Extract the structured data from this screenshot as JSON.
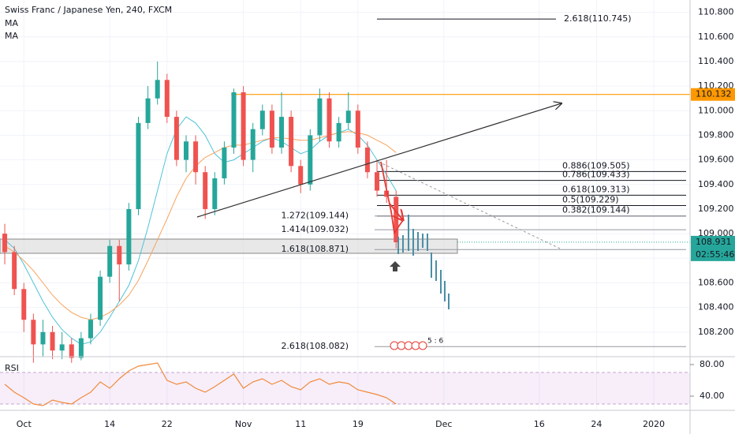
{
  "chart_data": {
    "type": "candlestick",
    "title": "Swiss Franc / Japanese Yen, 240, FXCM",
    "up_color": "#26a69a",
    "down_color": "#ef5350",
    "x": [
      -2,
      -1,
      0,
      1,
      2,
      3,
      4,
      5,
      6,
      7,
      8,
      9,
      10,
      11,
      12,
      13,
      14,
      15,
      16,
      17,
      18,
      19,
      20,
      21,
      22,
      23,
      24,
      25,
      26,
      27,
      28,
      29,
      30,
      31,
      32,
      33,
      34,
      35,
      36,
      37,
      38,
      39
    ],
    "open": [
      109.0,
      108.85,
      108.55,
      108.3,
      108.1,
      108.2,
      108.05,
      108.1,
      107.99,
      108.15,
      108.3,
      108.65,
      108.9,
      108.75,
      109.2,
      109.9,
      110.1,
      110.25,
      109.95,
      109.6,
      109.75,
      109.5,
      109.2,
      109.45,
      109.7,
      110.15,
      109.6,
      109.85,
      110.0,
      109.7,
      109.95,
      109.55,
      109.4,
      109.8,
      110.1,
      109.75,
      109.9,
      110.0,
      109.7,
      109.5,
      109.35,
      109.3
    ],
    "high": [
      109.08,
      108.9,
      108.6,
      108.35,
      108.3,
      108.25,
      108.2,
      108.15,
      108.2,
      108.35,
      108.7,
      108.95,
      108.95,
      109.25,
      109.95,
      110.2,
      110.4,
      110.3,
      110.0,
      109.8,
      109.8,
      109.55,
      109.5,
      109.75,
      110.18,
      110.2,
      109.9,
      110.05,
      110.05,
      110.15,
      110.0,
      109.6,
      109.85,
      110.18,
      110.15,
      109.95,
      110.15,
      110.05,
      109.75,
      109.6,
      109.6,
      109.35
    ],
    "low": [
      108.75,
      108.5,
      108.2,
      107.95,
      108.0,
      107.98,
      107.98,
      107.95,
      107.97,
      108.1,
      108.25,
      108.6,
      108.45,
      108.7,
      109.15,
      109.85,
      110.05,
      109.9,
      109.55,
      109.5,
      109.4,
      109.12,
      109.15,
      109.4,
      109.65,
      109.55,
      109.5,
      109.8,
      109.65,
      109.65,
      109.5,
      109.33,
      109.35,
      109.75,
      109.7,
      109.7,
      109.85,
      109.65,
      109.45,
      109.3,
      109.25,
      108.88
    ],
    "close": [
      108.85,
      108.55,
      108.3,
      108.1,
      108.2,
      108.05,
      108.1,
      107.99,
      108.15,
      108.3,
      108.65,
      108.9,
      108.75,
      109.2,
      109.9,
      110.1,
      110.25,
      109.95,
      109.6,
      109.75,
      109.5,
      109.2,
      109.45,
      109.7,
      110.15,
      109.6,
      109.85,
      110.0,
      109.7,
      109.95,
      109.55,
      109.4,
      109.8,
      110.1,
      109.75,
      109.9,
      110.0,
      109.7,
      109.5,
      109.35,
      109.3,
      108.93
    ],
    "series": [
      {
        "name": "MA",
        "color": "#4fc3d7",
        "values": [
          108.95,
          108.88,
          108.75,
          108.6,
          108.45,
          108.32,
          108.22,
          108.15,
          108.1,
          108.12,
          108.2,
          108.32,
          108.45,
          108.58,
          108.78,
          109.05,
          109.35,
          109.65,
          109.85,
          109.95,
          109.9,
          109.8,
          109.65,
          109.58,
          109.6,
          109.65,
          109.7,
          109.75,
          109.78,
          109.75,
          109.7,
          109.65,
          109.68,
          109.75,
          109.8,
          109.82,
          109.85,
          109.8,
          109.72,
          109.6,
          109.48,
          109.35
        ]
      },
      {
        "name": "MA",
        "color": "#f7a35c",
        "values": [
          108.9,
          108.85,
          108.78,
          108.7,
          108.6,
          108.5,
          108.42,
          108.36,
          108.32,
          108.3,
          108.32,
          108.36,
          108.42,
          108.5,
          108.62,
          108.78,
          108.95,
          109.12,
          109.3,
          109.45,
          109.55,
          109.62,
          109.66,
          109.7,
          109.72,
          109.72,
          109.74,
          109.76,
          109.78,
          109.78,
          109.77,
          109.76,
          109.76,
          109.78,
          109.8,
          109.82,
          109.83,
          109.82,
          109.8,
          109.76,
          109.72,
          109.66
        ]
      }
    ],
    "xlim": [
      -2.5,
      69.8
    ],
    "xticks": [
      {
        "value": 0,
        "label": "Oct"
      },
      {
        "value": 9,
        "label": "14"
      },
      {
        "value": 15,
        "label": "22"
      },
      {
        "value": 23,
        "label": "Nov"
      },
      {
        "value": 29,
        "label": "11"
      },
      {
        "value": 35,
        "label": "19"
      },
      {
        "value": 44,
        "label": "Dec"
      },
      {
        "value": 54,
        "label": "16"
      },
      {
        "value": 60,
        "label": "24"
      },
      {
        "value": 66,
        "label": "2020"
      }
    ],
    "ylim": [
      108.0,
      110.9
    ],
    "yticks": [
      {
        "value": 110.8,
        "label": "110.800"
      },
      {
        "value": 110.6,
        "label": "110.600"
      },
      {
        "value": 110.4,
        "label": "110.400"
      },
      {
        "value": 110.2,
        "label": "110.200"
      },
      {
        "value": 110.0,
        "label": "110.000"
      },
      {
        "value": 109.8,
        "label": "109.800"
      },
      {
        "value": 109.6,
        "label": "109.600"
      },
      {
        "value": 109.4,
        "label": "109.400"
      },
      {
        "value": 109.2,
        "label": "109.200"
      },
      {
        "value": 109.0,
        "label": "109.000"
      },
      {
        "value": 108.8,
        "label": "108.800"
      },
      {
        "value": 108.6,
        "label": "108.600"
      },
      {
        "value": 108.4,
        "label": "108.400"
      },
      {
        "value": 108.2,
        "label": "108.200"
      }
    ],
    "fib_levels": [
      {
        "label": "2.618(110.745)",
        "value": 110.745,
        "color": "#131722"
      },
      {
        "label": "0.886(109.505)",
        "value": 109.505,
        "color": "#131722"
      },
      {
        "label": "0.786(109.433)",
        "value": 109.433,
        "color": "#131722"
      },
      {
        "label": "0.618(109.313)",
        "value": 109.313,
        "color": "#131722"
      },
      {
        "label": "0.5(109.229)",
        "value": 109.229,
        "color": "#131722"
      },
      {
        "label": "0.382(109.144)",
        "value": 109.144,
        "color": "#131722"
      },
      {
        "label": "1.272(109.144)",
        "value": 109.144,
        "color": "#9598a1"
      },
      {
        "label": "1.414(109.032)",
        "value": 109.032,
        "color": "#9598a1"
      },
      {
        "label": "1.618(108.871)",
        "value": 108.871,
        "color": "#9598a1"
      },
      {
        "label": "2.618(108.082)",
        "value": 108.082,
        "color": "#9598a1"
      }
    ],
    "price_tags": [
      {
        "label": "110.132",
        "value": 110.132,
        "color": "#ff9800"
      },
      {
        "label": "108.931",
        "value": 108.931,
        "color": "#26a69a",
        "countdown": "02:55:46"
      }
    ],
    "badge": "5 : 6",
    "rsi": {
      "name": "RSI",
      "color": "#f08a3c",
      "values": [
        55,
        45,
        38,
        30,
        28,
        35,
        32,
        30,
        38,
        45,
        58,
        50,
        62,
        72,
        78,
        80,
        82,
        60,
        55,
        58,
        50,
        45,
        52,
        60,
        68,
        50,
        58,
        62,
        55,
        60,
        52,
        48,
        58,
        62,
        55,
        58,
        56,
        48,
        45,
        42,
        38,
        30
      ],
      "ylim": [
        22,
        87
      ],
      "band": [
        30,
        70
      ],
      "yticks": [
        {
          "value": 80,
          "label": "80.00"
        },
        {
          "value": 40,
          "label": "40.00"
        }
      ]
    }
  }
}
